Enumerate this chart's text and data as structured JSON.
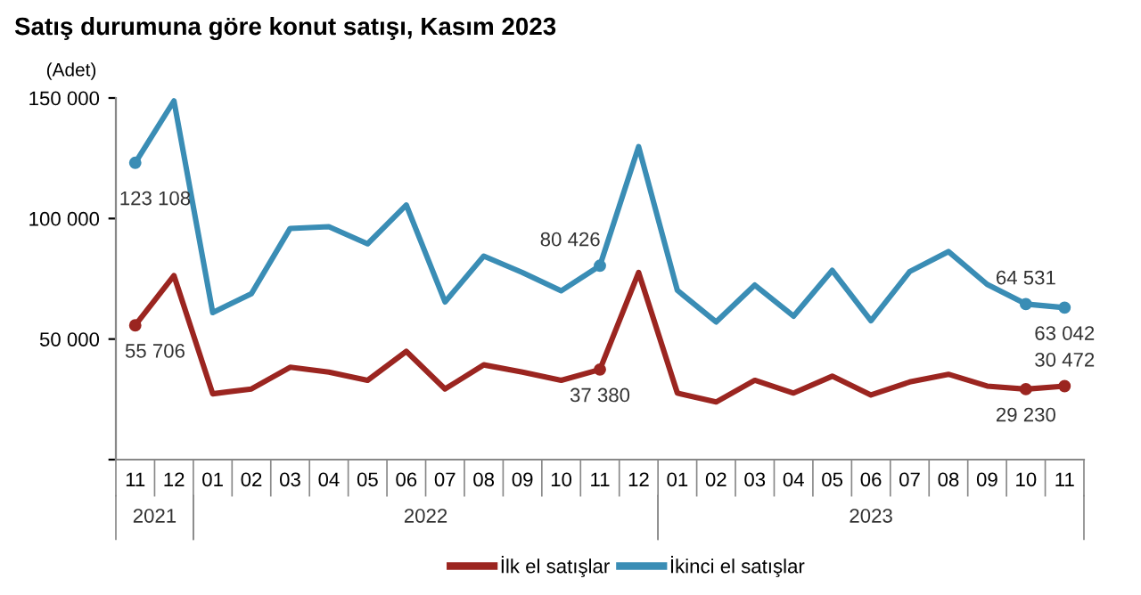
{
  "chart_data": {
    "type": "line",
    "title": "Satış durumuna göre konut satışı, Kasım 2023",
    "ylabel": "(Adet)",
    "categories": [
      "11",
      "12",
      "01",
      "02",
      "03",
      "04",
      "05",
      "06",
      "07",
      "08",
      "09",
      "10",
      "11",
      "12",
      "01",
      "02",
      "03",
      "04",
      "05",
      "06",
      "07",
      "08",
      "09",
      "10",
      "11"
    ],
    "annotations": [
      "2021",
      "2022",
      "2023"
    ],
    "ylim": [
      0,
      150000
    ],
    "yticks": [
      {
        "value": 0,
        "label": null
      },
      {
        "value": 50000,
        "label": "50 000"
      },
      {
        "value": 100000,
        "label": "100 000"
      },
      {
        "value": 150000,
        "label": "150 000"
      }
    ],
    "legend": "bottom",
    "grid": false,
    "series": [
      {
        "name": "İlk el satışlar",
        "color": "#9b2520",
        "values": [
          55706,
          76300,
          27300,
          29300,
          38300,
          36300,
          32900,
          44900,
          29300,
          39300,
          36300,
          32900,
          37380,
          77600,
          27600,
          23900,
          32900,
          27600,
          34600,
          26800,
          32200,
          35400,
          30500,
          29230,
          30472
        ],
        "value_labels": [
          "55 706",
          null,
          null,
          null,
          null,
          null,
          null,
          null,
          null,
          null,
          null,
          null,
          "37 380",
          null,
          null,
          null,
          null,
          null,
          null,
          null,
          null,
          null,
          null,
          "29 230",
          "30 472"
        ]
      },
      {
        "name": "İkinci el satışlar",
        "color": "#3a8db5",
        "values": [
          123108,
          148800,
          61000,
          68800,
          95900,
          96600,
          89500,
          105600,
          65400,
          84400,
          77600,
          70000,
          80426,
          129800,
          70200,
          57100,
          72400,
          59500,
          78500,
          57600,
          78000,
          86300,
          72700,
          64531,
          63042
        ],
        "value_labels": [
          "123 108",
          null,
          null,
          null,
          null,
          null,
          null,
          null,
          null,
          null,
          null,
          null,
          "80 426",
          null,
          null,
          null,
          null,
          null,
          null,
          null,
          null,
          null,
          null,
          "64 531",
          "63 042"
        ]
      }
    ]
  }
}
